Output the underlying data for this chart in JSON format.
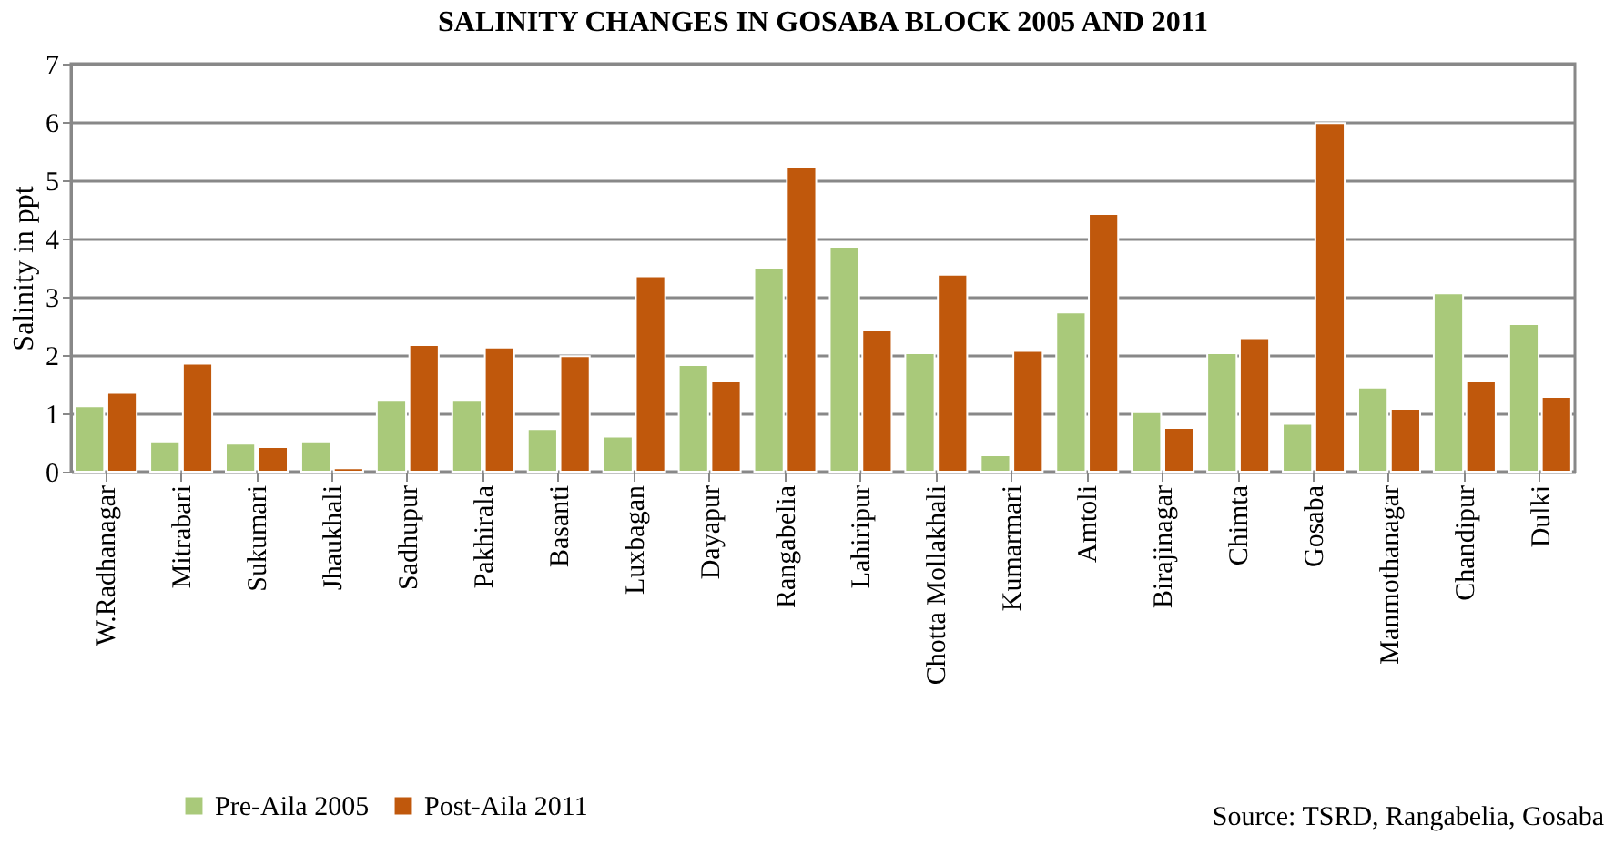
{
  "chart_data": {
    "type": "bar",
    "title": "SALINITY CHANGES IN GOSABA BLOCK 2005 AND 2011",
    "ylabel": "Salinity in ppt",
    "categories": [
      "W.Radhanagar",
      "Mitrabari",
      "Sukumari",
      "Jhaukhali",
      "Sadhupur",
      "Pakhirala",
      "Basanti",
      "Luxbagan",
      "Dayapur",
      "Rangabelia",
      "Lahiripur",
      "Chotta Mollakhali",
      "Kumarmari",
      "Amtoli",
      "Birajinagar",
      "Chimta",
      "Gosaba",
      "Manmothanagar",
      "Chandipur",
      "Dulki"
    ],
    "series": [
      {
        "name": "Pre-Aila 2005",
        "color": "#a9c97a",
        "values": [
          1.12,
          0.52,
          0.48,
          0.52,
          1.23,
          1.23,
          0.73,
          0.6,
          1.83,
          3.5,
          3.86,
          2.03,
          0.28,
          2.73,
          1.02,
          2.03,
          0.82,
          1.44,
          3.06,
          2.53
        ]
      },
      {
        "name": "Post-Aila 2011",
        "color": "#c0580c",
        "values": [
          1.35,
          1.85,
          0.42,
          0.06,
          2.17,
          2.13,
          1.98,
          3.35,
          1.56,
          5.22,
          2.43,
          3.38,
          2.07,
          4.42,
          0.75,
          2.29,
          5.98,
          1.08,
          1.56,
          1.28
        ]
      }
    ],
    "ylim": [
      0,
      7
    ],
    "yticks": [
      0,
      1,
      2,
      3,
      4,
      5,
      6,
      7
    ],
    "grid": "y",
    "legend": "bottom left",
    "annotations": [
      "Source: TSRD, Rangabelia, Gosaba"
    ]
  }
}
